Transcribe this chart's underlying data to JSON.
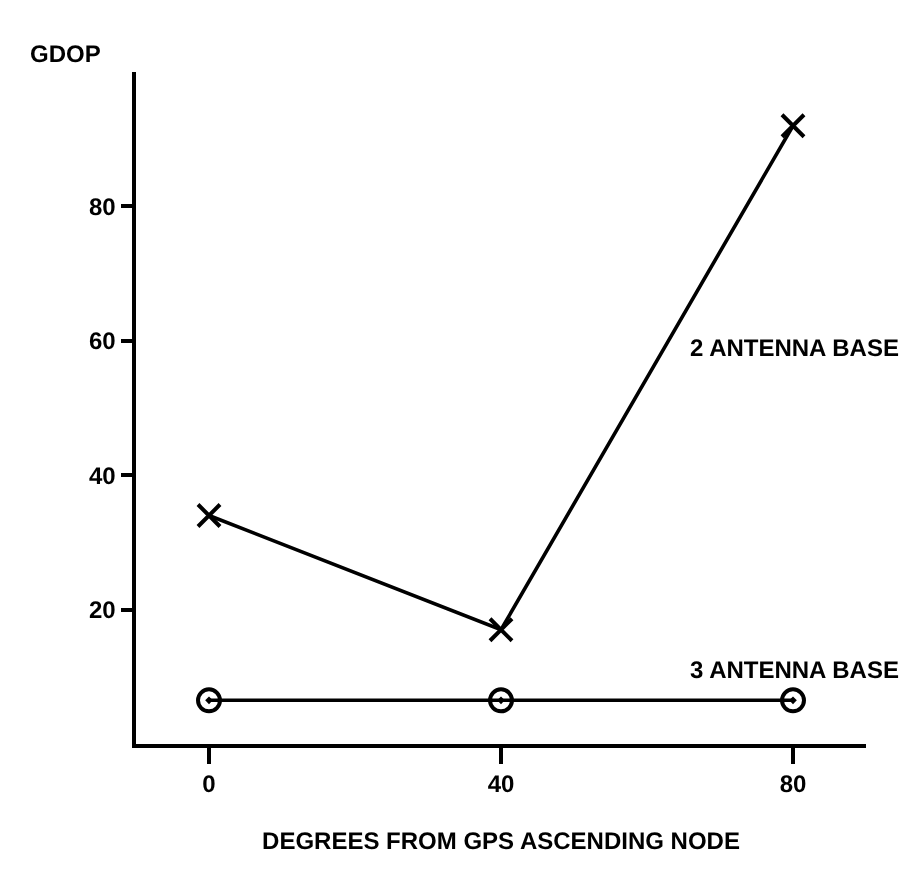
{
  "chart_data": {
    "type": "line",
    "xlabel": "DEGREES FROM GPS ASCENDING NODE",
    "ylabel": "GDOP",
    "x": [
      0,
      40,
      80
    ],
    "series": [
      {
        "name": "2 ANTENNA BASE",
        "color": "#000000",
        "values": [
          34,
          17,
          92
        ],
        "marker": "cross"
      },
      {
        "name": "3 ANTENNA BASE",
        "color": "#000000",
        "values": [
          6.5,
          6.5,
          6.5
        ],
        "marker": "circle"
      }
    ],
    "xlim": [
      -10,
      90
    ],
    "xticks": [
      0,
      40,
      80
    ],
    "ylim": [
      0,
      100
    ],
    "yticks": [
      20,
      40,
      60,
      80
    ]
  }
}
